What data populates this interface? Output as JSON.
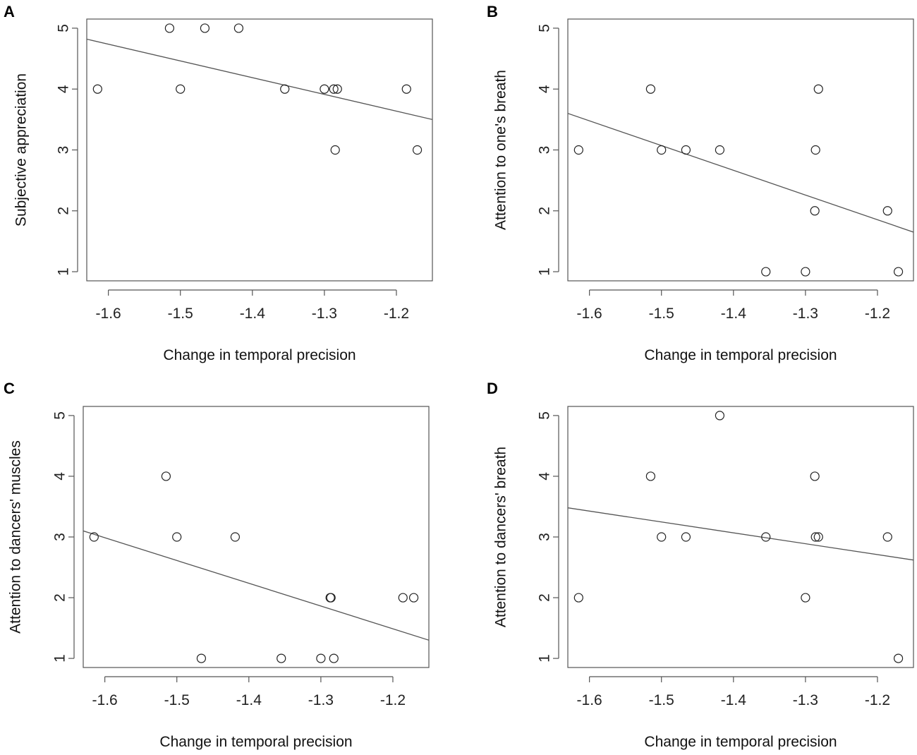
{
  "chart_data": [
    {
      "panel": "A",
      "type": "scatter",
      "xlabel": "Change in temporal precision",
      "ylabel": "Subjective appreciation",
      "xlim": [
        -1.63,
        -1.15
      ],
      "ylim": [
        0.85,
        5.15
      ],
      "xticks": [
        -1.6,
        -1.5,
        -1.4,
        -1.3,
        -1.2
      ],
      "xtick_labels": [
        "-1.6",
        "-1.5",
        "-1.4",
        "-1.3",
        "-1.2"
      ],
      "yticks": [
        1,
        2,
        3,
        4,
        5
      ],
      "ytick_labels": [
        "1",
        "2",
        "3",
        "4",
        "5"
      ],
      "points": [
        {
          "x": -1.615,
          "y": 4
        },
        {
          "x": -1.515,
          "y": 5
        },
        {
          "x": -1.5,
          "y": 4
        },
        {
          "x": -1.466,
          "y": 5
        },
        {
          "x": -1.419,
          "y": 5
        },
        {
          "x": -1.355,
          "y": 4
        },
        {
          "x": -1.3,
          "y": 4
        },
        {
          "x": -1.287,
          "y": 4
        },
        {
          "x": -1.282,
          "y": 4
        },
        {
          "x": -1.285,
          "y": 3
        },
        {
          "x": -1.186,
          "y": 4
        },
        {
          "x": -1.171,
          "y": 3
        }
      ],
      "regression": {
        "x": [
          -1.63,
          -1.15
        ],
        "y": [
          4.82,
          3.5
        ]
      }
    },
    {
      "panel": "B",
      "type": "scatter",
      "xlabel": "Change in temporal precision",
      "ylabel": "Attention to one's breath",
      "xlim": [
        -1.63,
        -1.15
      ],
      "ylim": [
        0.85,
        5.15
      ],
      "xticks": [
        -1.6,
        -1.5,
        -1.4,
        -1.3,
        -1.2
      ],
      "xtick_labels": [
        "-1.6",
        "-1.5",
        "-1.4",
        "-1.3",
        "-1.2"
      ],
      "yticks": [
        1,
        2,
        3,
        4,
        5
      ],
      "ytick_labels": [
        "1",
        "2",
        "3",
        "4",
        "5"
      ],
      "points": [
        {
          "x": -1.615,
          "y": 3
        },
        {
          "x": -1.515,
          "y": 4
        },
        {
          "x": -1.5,
          "y": 3
        },
        {
          "x": -1.466,
          "y": 3
        },
        {
          "x": -1.419,
          "y": 3
        },
        {
          "x": -1.355,
          "y": 1
        },
        {
          "x": -1.3,
          "y": 1
        },
        {
          "x": -1.287,
          "y": 2
        },
        {
          "x": -1.286,
          "y": 3
        },
        {
          "x": -1.282,
          "y": 4
        },
        {
          "x": -1.186,
          "y": 2
        },
        {
          "x": -1.171,
          "y": 1
        }
      ],
      "regression": {
        "x": [
          -1.63,
          -1.15
        ],
        "y": [
          3.6,
          1.65
        ]
      }
    },
    {
      "panel": "C",
      "type": "scatter",
      "xlabel": "Change in temporal precision",
      "ylabel": "Attention to dancers' muscles",
      "xlim": [
        -1.63,
        -1.15
      ],
      "ylim": [
        0.85,
        5.15
      ],
      "xticks": [
        -1.6,
        -1.5,
        -1.4,
        -1.3,
        -1.2
      ],
      "xtick_labels": [
        "-1.6",
        "-1.5",
        "-1.4",
        "-1.3",
        "-1.2"
      ],
      "yticks": [
        1,
        2,
        3,
        4,
        5
      ],
      "ytick_labels": [
        "1",
        "2",
        "3",
        "4",
        "5"
      ],
      "points": [
        {
          "x": -1.615,
          "y": 3
        },
        {
          "x": -1.515,
          "y": 4
        },
        {
          "x": -1.5,
          "y": 3
        },
        {
          "x": -1.466,
          "y": 1
        },
        {
          "x": -1.419,
          "y": 3
        },
        {
          "x": -1.355,
          "y": 1
        },
        {
          "x": -1.3,
          "y": 1
        },
        {
          "x": -1.287,
          "y": 2
        },
        {
          "x": -1.286,
          "y": 2
        },
        {
          "x": -1.282,
          "y": 1
        },
        {
          "x": -1.186,
          "y": 2
        },
        {
          "x": -1.171,
          "y": 2
        }
      ],
      "regression": {
        "x": [
          -1.63,
          -1.15
        ],
        "y": [
          3.1,
          1.3
        ]
      }
    },
    {
      "panel": "D",
      "type": "scatter",
      "xlabel": "Change in temporal precision",
      "ylabel": "Attention to dancers' breath",
      "xlim": [
        -1.63,
        -1.15
      ],
      "ylim": [
        0.85,
        5.15
      ],
      "xticks": [
        -1.6,
        -1.5,
        -1.4,
        -1.3,
        -1.2
      ],
      "xtick_labels": [
        "-1.6",
        "-1.5",
        "-1.4",
        "-1.3",
        "-1.2"
      ],
      "yticks": [
        1,
        2,
        3,
        4,
        5
      ],
      "ytick_labels": [
        "1",
        "2",
        "3",
        "4",
        "5"
      ],
      "points": [
        {
          "x": -1.615,
          "y": 2
        },
        {
          "x": -1.515,
          "y": 4
        },
        {
          "x": -1.5,
          "y": 3
        },
        {
          "x": -1.466,
          "y": 3
        },
        {
          "x": -1.419,
          "y": 5
        },
        {
          "x": -1.355,
          "y": 3
        },
        {
          "x": -1.3,
          "y": 2
        },
        {
          "x": -1.287,
          "y": 4
        },
        {
          "x": -1.286,
          "y": 3
        },
        {
          "x": -1.282,
          "y": 3
        },
        {
          "x": -1.186,
          "y": 3
        },
        {
          "x": -1.171,
          "y": 1
        }
      ],
      "regression": {
        "x": [
          -1.63,
          -1.15
        ],
        "y": [
          3.48,
          2.62
        ]
      }
    }
  ]
}
